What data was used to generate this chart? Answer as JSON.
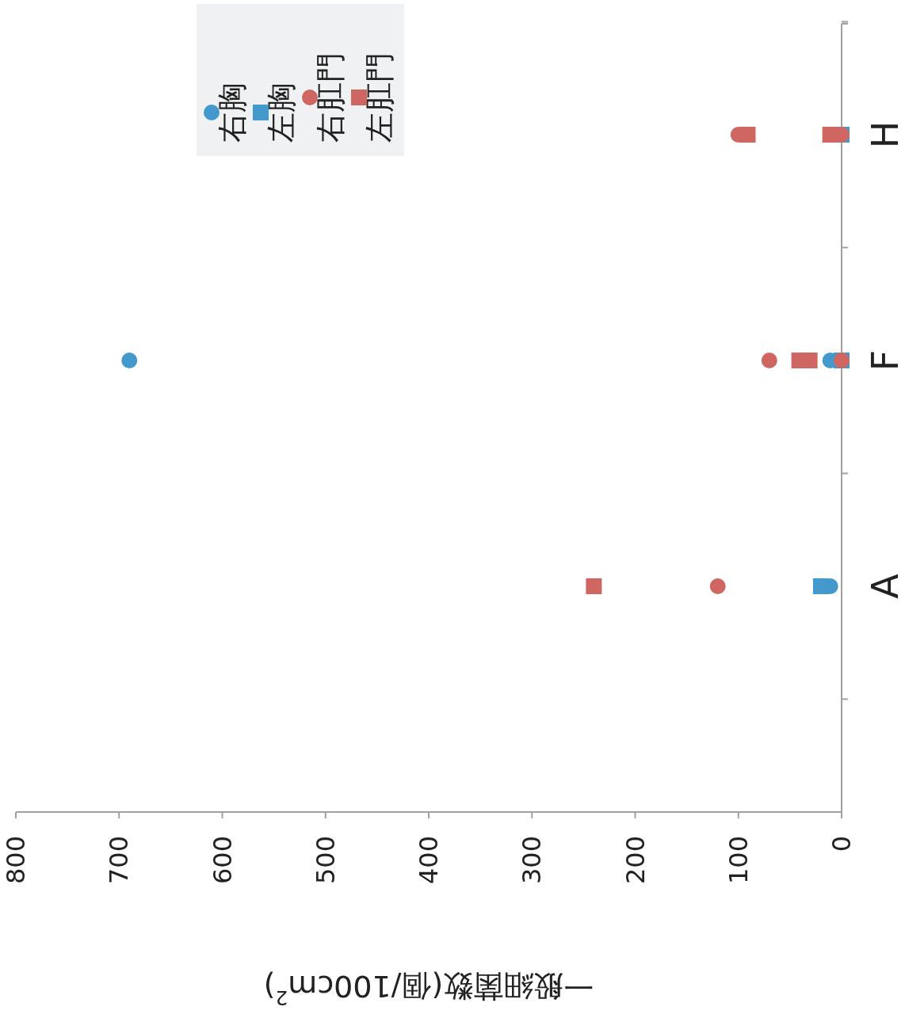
{
  "chart_data": {
    "type": "scatter",
    "orientation": "horizontal",
    "categories": [
      "H",
      "F",
      "A"
    ],
    "xlabel": "一般細菌数(個/100cm$^{2}$)",
    "xlim": [
      800,
      0
    ],
    "xticks": [
      800,
      700,
      600,
      500,
      400,
      300,
      200,
      100,
      0
    ],
    "legend": "top left",
    "series": [
      {
        "name": "右胸",
        "color": "#4398cc",
        "marker": "circle",
        "x": [
          "A",
          "F",
          "F"
        ],
        "values": [
          11,
          690,
          11
        ]
      },
      {
        "name": "左胸",
        "color": "#4398cc",
        "marker": "square",
        "x": [
          "A",
          "F",
          "H"
        ],
        "values": [
          20,
          0,
          0
        ]
      },
      {
        "name": "右肛門",
        "color": "#d06661",
        "marker": "circle",
        "x": [
          "A",
          "F",
          "F",
          "H",
          "H"
        ],
        "values": [
          120,
          70,
          0,
          100,
          0
        ]
      },
      {
        "name": "左肛門",
        "color": "#d06661",
        "marker": "square",
        "x": [
          "A",
          "F",
          "F",
          "H",
          "H"
        ],
        "values": [
          240,
          41,
          31,
          91,
          11
        ]
      }
    ]
  }
}
